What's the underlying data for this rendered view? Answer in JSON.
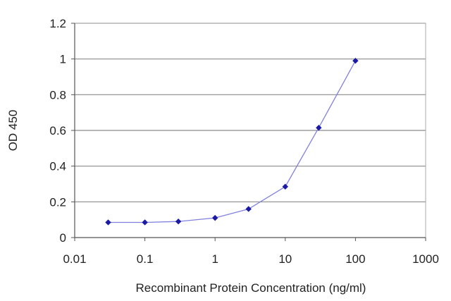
{
  "chart_data": {
    "type": "line",
    "xlabel": "Recombinant Protein Concentration (ng/ml)",
    "ylabel": "OD 450",
    "x_scale": "log",
    "xlim": [
      0.01,
      1000
    ],
    "ylim": [
      0,
      1.2
    ],
    "x_ticks": [
      "0.01",
      "0.1",
      "1",
      "10",
      "100",
      "1000"
    ],
    "y_ticks": [
      "0",
      "0.2",
      "0.4",
      "0.6",
      "0.8",
      "1",
      "1.2"
    ],
    "grid": "horizontal",
    "legend": "none",
    "series": [
      {
        "x": [
          0.03,
          0.1,
          0.3,
          1,
          3,
          10,
          30,
          100
        ],
        "y": [
          0.085,
          0.085,
          0.09,
          0.11,
          0.16,
          0.285,
          0.615,
          0.99
        ],
        "color": "#1a1aa6",
        "line_color": "#8080e0"
      }
    ],
    "colors": {
      "grid": "#8a8a8a",
      "axis": "#555555",
      "plot_border": "#aaaaaa"
    }
  }
}
